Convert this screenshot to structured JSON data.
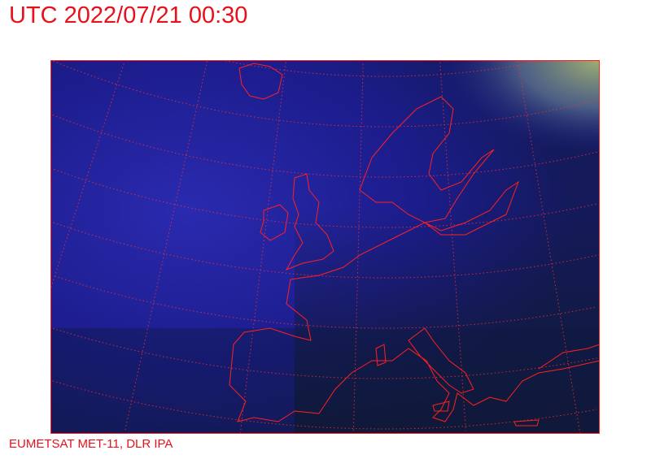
{
  "header": {
    "title": "UTC 2022/07/21 00:30"
  },
  "footer": {
    "credit": "EUMETSAT MET-11, DLR IPA"
  },
  "map": {
    "imagery": "night-time satellite composite of Europe and North Atlantic",
    "overlay_color": "#ff2020",
    "graticule": "dotted",
    "background_colors": {
      "ocean_cloud": "#1a1a8a",
      "land_dark": "#101830",
      "arctic_cloud": "#90a070"
    }
  }
}
